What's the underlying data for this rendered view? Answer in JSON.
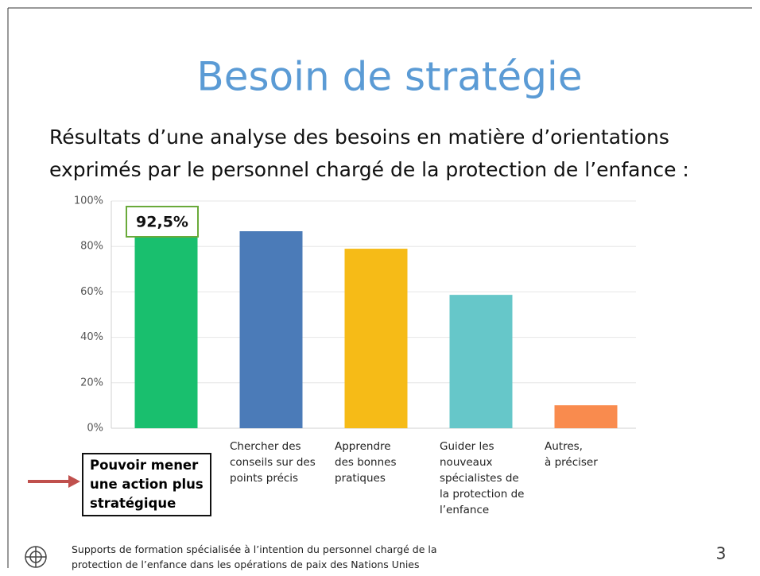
{
  "title": "Besoin de stratégie",
  "subtitle": "Résultats d’une analyse des besoins en matière d’orientations\nexprimés par le personnel chargé de la protection de l’enfance :",
  "footer": "Supports de formation spécialisée à l’intention du personnel chargé de la\nprotection de l’enfance dans les opérations de paix des Nations Unies",
  "page_number": "3",
  "chart_data": {
    "type": "bar",
    "categories": [
      "Pouvoir mener\nune action plus\nstratégique",
      "Chercher des\nconseils sur des\npoints précis",
      "Apprendre\ndes bonnes\npratiques",
      "Guider les\nnouveaux\nspécialistes de\nla protection de\nl’enfance",
      "Autres,\nà préciser"
    ],
    "values": [
      92.5,
      86.7,
      79,
      58.7,
      10.1
    ],
    "value_labels": [
      "92,5%",
      null,
      null,
      null,
      null
    ],
    "colors": [
      "#19bf6e",
      "#4b7bb8",
      "#f6bb17",
      "#66c7c9",
      "#f98b4e"
    ],
    "ylim": [
      0,
      100
    ],
    "yticks": [
      {
        "value": 0,
        "label": "0%"
      },
      {
        "value": 20,
        "label": "20%"
      },
      {
        "value": 40,
        "label": "40%"
      },
      {
        "value": 60,
        "label": "60%"
      },
      {
        "value": 80,
        "label": "80%"
      },
      {
        "value": 100,
        "label": "100%"
      }
    ],
    "grid": true
  }
}
